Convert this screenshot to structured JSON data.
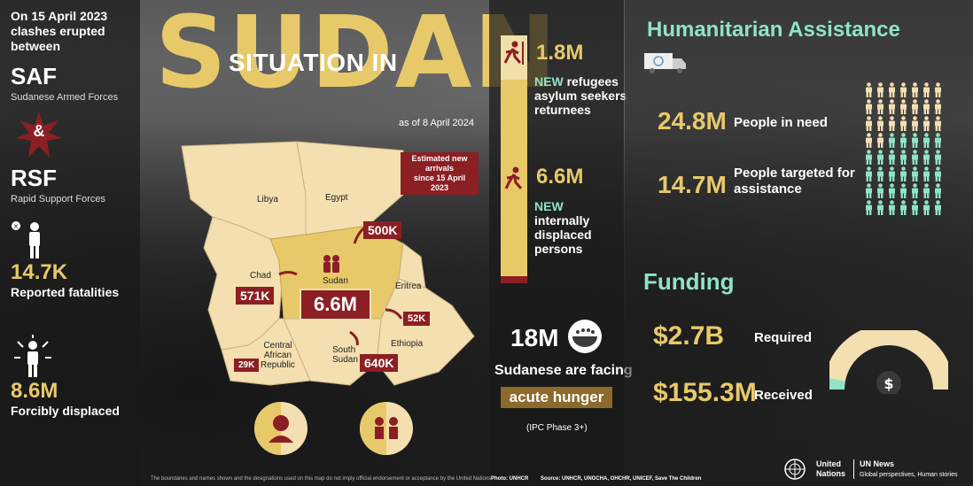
{
  "left": {
    "intro": [
      "On 15 April 2023",
      "clashes erupted between"
    ],
    "saf": "SAF",
    "saf_full": "Sudanese Armed Forces",
    "ampersand": "&",
    "rsf": "RSF",
    "rsf_full": "Rapid Support Forces",
    "fatalities_value": "14.7K",
    "fatalities_label": "Reported fatalities",
    "displaced_value": "8.6M",
    "displaced_label": "Forcibly displaced"
  },
  "title": {
    "big": "SUDAN",
    "small": "SITUATION IN",
    "as_of": "as of 8 April 2024"
  },
  "map": {
    "legend": [
      "Estimated new arrivals",
      "since 15 April 2023"
    ],
    "countries": {
      "libya": "Libya",
      "egypt": "Egypt",
      "chad": "Chad",
      "sudan": "Sudan",
      "eritrea": "Eritrea",
      "car": [
        "Central",
        "African",
        "Republic"
      ],
      "south_sudan": [
        "South",
        "Sudan"
      ],
      "ethiopia": "Ethiopia"
    },
    "arrivals": {
      "egypt": "500K",
      "chad": "571K",
      "eritrea": "52K",
      "car": "29K",
      "south_sudan": "640K"
    },
    "sudan_total": "6.6M"
  },
  "middle": {
    "refugees_value": "1.8M",
    "refugees_new": "NEW",
    "refugees_label": [
      "refugees",
      "asylum seekers",
      "returnees"
    ],
    "idp_value": "6.6M",
    "idp_new": "NEW",
    "idp_label": [
      "internally",
      "displaced",
      "persons"
    ],
    "hunger_value": "18M",
    "hunger_label": "Sudanese are facing",
    "hunger_badge": "acute hunger",
    "hunger_phase": "(IPC Phase 3+)"
  },
  "right": {
    "title": "Humanitarian Assistance",
    "in_need_value": "24.8M",
    "in_need_label": "People in need",
    "targeted_value": "14.7M",
    "targeted_label": [
      "People targeted for",
      "assistance"
    ],
    "funding_title": "Funding",
    "required_value": "$2.7B",
    "required_label": "Required",
    "received_value": "$155.3M",
    "received_label": "Received",
    "funded_fraction": 0.06
  },
  "footer": {
    "disclaimer": "The boundaries and names shown and the designations used on this map do not imply official endorsement or acceptance by the United Nations",
    "photo": "Photo: UNHCR",
    "sources": "Source: UNHCR, UNOCHA, OHCHR, UNICEF, Save The Children",
    "un_logo_text": [
      "United",
      "Nations"
    ],
    "un_news": "UN News",
    "un_news_sub": "Global perspectives, Human stories"
  },
  "colors": {
    "yellow": "#e8c96a",
    "dark_red": "#8b1f24",
    "mint": "#8fe3c6",
    "beige": "#f3dfb0"
  }
}
